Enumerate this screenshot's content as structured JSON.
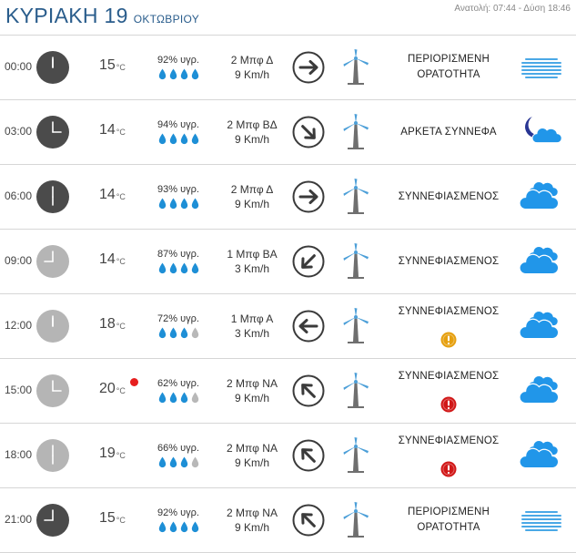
{
  "header": {
    "day": "ΚΥΡΙΑΚΗ 19",
    "month": "ΟΚΤΩΒΡΙΟΥ",
    "sun": "Ανατολή: 07:44  - Δύση 18:46"
  },
  "colors": {
    "title": "#2a5d8c",
    "drop_full": "#1e8fd6",
    "drop_empty": "#b8b8b8",
    "cloud": "#2196e9",
    "fog": "#4aa8e6",
    "turbine_blade": "#4c9fd8",
    "turbine_tower": "#6f6f6f",
    "warn_orange": "#e6a010",
    "warn_red": "#d11818",
    "hot_dot": "#e61e1e"
  },
  "rows": [
    {
      "time": "00:00",
      "clock": "dark",
      "temp": "15",
      "unit": "°C",
      "hot": false,
      "humidity": "92% υγρ.",
      "drops_filled": 4,
      "wind": "2 Μπφ Δ",
      "speed": "9 Km/h",
      "arrow_icon": "arrow-right-icon",
      "desc_lines": [
        "ΠΕΡΙΟΡΙΣΜΕΝΗ",
        "ΟΡΑΤΟΤΗΤΑ"
      ],
      "alert": "",
      "weather_icon": "fog-icon"
    },
    {
      "time": "03:00",
      "clock": "dark",
      "temp": "14",
      "unit": "°C",
      "hot": false,
      "humidity": "94% υγρ.",
      "drops_filled": 4,
      "wind": "2 Μπφ ΒΔ",
      "speed": "9 Km/h",
      "arrow_icon": "arrow-down-right-icon",
      "desc_lines": [
        "ΑΡΚΕΤΑ ΣΥΝΝΕΦΑ"
      ],
      "alert": "",
      "weather_icon": "moon-cloud-icon"
    },
    {
      "time": "06:00",
      "clock": "dark",
      "temp": "14",
      "unit": "°C",
      "hot": false,
      "humidity": "93% υγρ.",
      "drops_filled": 4,
      "wind": "2 Μπφ Δ",
      "speed": "9 Km/h",
      "arrow_icon": "arrow-right-icon",
      "desc_lines": [
        "ΣΥΝΝΕΦΙΑΣΜΕΝΟΣ"
      ],
      "alert": "",
      "weather_icon": "cloud-icon"
    },
    {
      "time": "09:00",
      "clock": "light",
      "temp": "14",
      "unit": "°C",
      "hot": false,
      "humidity": "87% υγρ.",
      "drops_filled": 4,
      "wind": "1 Μπφ ΒΑ",
      "speed": "3 Km/h",
      "arrow_icon": "arrow-down-left-icon",
      "desc_lines": [
        "ΣΥΝΝΕΦΙΑΣΜΕΝΟΣ"
      ],
      "alert": "",
      "weather_icon": "cloud-icon"
    },
    {
      "time": "12:00",
      "clock": "light",
      "temp": "18",
      "unit": "°C",
      "hot": false,
      "humidity": "72% υγρ.",
      "drops_filled": 3,
      "wind": "1 Μπφ Α",
      "speed": "3 Km/h",
      "arrow_icon": "arrow-left-icon",
      "desc_lines": [
        "ΣΥΝΝΕΦΙΑΣΜΕΝΟΣ"
      ],
      "alert": "uv-warning-orange-icon",
      "weather_icon": "cloud-icon"
    },
    {
      "time": "15:00",
      "clock": "light",
      "temp": "20",
      "unit": "°C",
      "hot": true,
      "humidity": "62% υγρ.",
      "drops_filled": 3,
      "wind": "2 Μπφ ΝΑ",
      "speed": "9 Km/h",
      "arrow_icon": "arrow-up-left-icon",
      "desc_lines": [
        "ΣΥΝΝΕΦΙΑΣΜΕΝΟΣ"
      ],
      "alert": "uv-warning-red-icon",
      "weather_icon": "cloud-icon"
    },
    {
      "time": "18:00",
      "clock": "light",
      "temp": "19",
      "unit": "°C",
      "hot": false,
      "humidity": "66% υγρ.",
      "drops_filled": 3,
      "wind": "2 Μπφ ΝΑ",
      "speed": "9 Km/h",
      "arrow_icon": "arrow-up-left-icon",
      "desc_lines": [
        "ΣΥΝΝΕΦΙΑΣΜΕΝΟΣ"
      ],
      "alert": "uv-warning-red-icon",
      "weather_icon": "cloud-icon"
    },
    {
      "time": "21:00",
      "clock": "dark",
      "temp": "15",
      "unit": "°C",
      "hot": false,
      "humidity": "92% υγρ.",
      "drops_filled": 4,
      "wind": "2 Μπφ ΝΑ",
      "speed": "9 Km/h",
      "arrow_icon": "arrow-up-left-icon",
      "desc_lines": [
        "ΠΕΡΙΟΡΙΣΜΕΝΗ",
        "ΟΡΑΤΟΤΗΤΑ"
      ],
      "alert": "",
      "weather_icon": "fog-icon"
    }
  ]
}
